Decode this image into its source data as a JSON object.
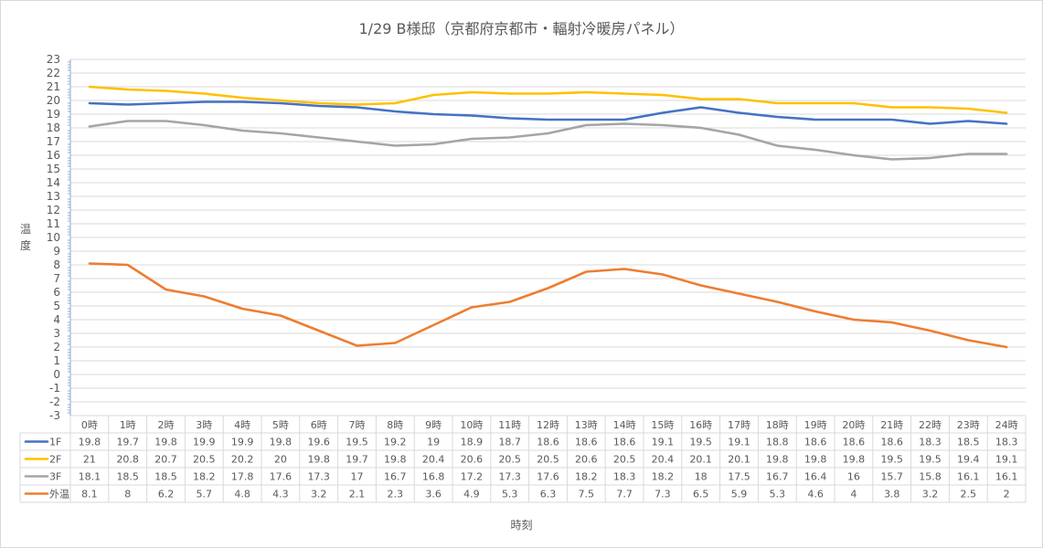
{
  "chart_data": {
    "type": "line",
    "title": "1/29 B様邸（京都府京都市・輻射冷暖房パネル）",
    "ylabel": "温度",
    "xlabel": "時刻",
    "ylim": [
      -3,
      23
    ],
    "yticks": [
      -3,
      -2,
      -1,
      0,
      1,
      2,
      3,
      4,
      5,
      6,
      7,
      8,
      9,
      10,
      11,
      12,
      13,
      14,
      15,
      16,
      17,
      18,
      19,
      20,
      21,
      22,
      23
    ],
    "grid": true,
    "legend": "data-table",
    "categories": [
      "0時",
      "1時",
      "2時",
      "3時",
      "4時",
      "5時",
      "6時",
      "7時",
      "8時",
      "9時",
      "10時",
      "11時",
      "12時",
      "13時",
      "14時",
      "15時",
      "16時",
      "17時",
      "18時",
      "19時",
      "20時",
      "21時",
      "22時",
      "23時",
      "24時"
    ],
    "series": [
      {
        "name": "1F",
        "color": "#4472c4",
        "values": [
          19.8,
          19.7,
          19.8,
          19.9,
          19.9,
          19.8,
          19.6,
          19.5,
          19.2,
          19,
          18.9,
          18.7,
          18.6,
          18.6,
          18.6,
          19.1,
          19.5,
          19.1,
          18.8,
          18.6,
          18.6,
          18.6,
          18.3,
          18.5,
          18.3
        ]
      },
      {
        "name": "2F",
        "color": "#ffc000",
        "values": [
          21,
          20.8,
          20.7,
          20.5,
          20.2,
          20,
          19.8,
          19.7,
          19.8,
          20.4,
          20.6,
          20.5,
          20.5,
          20.6,
          20.5,
          20.4,
          20.1,
          20.1,
          19.8,
          19.8,
          19.8,
          19.5,
          19.5,
          19.4,
          19.1
        ]
      },
      {
        "name": "3F",
        "color": "#a5a5a5",
        "values": [
          18.1,
          18.5,
          18.5,
          18.2,
          17.8,
          17.6,
          17.3,
          17,
          16.7,
          16.8,
          17.2,
          17.3,
          17.6,
          18.2,
          18.3,
          18.2,
          18,
          17.5,
          16.7,
          16.4,
          16,
          15.7,
          15.8,
          16.1,
          16.1
        ]
      },
      {
        "name": "外温",
        "color": "#ed7d31",
        "values": [
          8.1,
          8,
          6.2,
          5.7,
          4.8,
          4.3,
          3.2,
          2.1,
          2.3,
          3.6,
          4.9,
          5.3,
          6.3,
          7.5,
          7.7,
          7.3,
          6.5,
          5.9,
          5.3,
          4.6,
          4,
          3.8,
          3.2,
          2.5,
          2
        ]
      }
    ]
  }
}
